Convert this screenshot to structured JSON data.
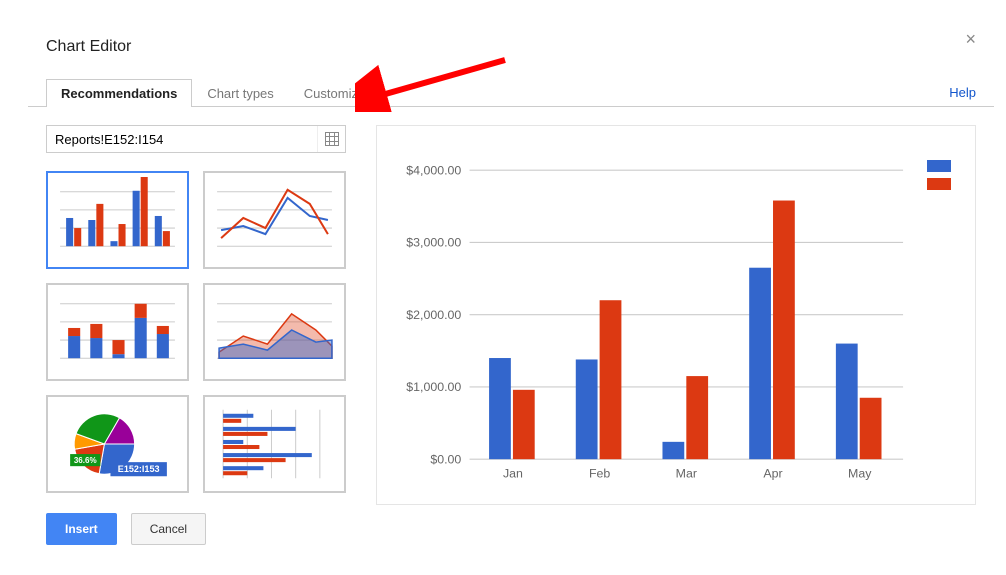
{
  "dialog": {
    "title": "Chart Editor",
    "tabs": [
      "Recommendations",
      "Chart types",
      "Customization"
    ],
    "active_tab_index": 0,
    "help_label": "Help",
    "range_value": "Reports!E152:I154",
    "insert_label": "Insert",
    "cancel_label": "Cancel"
  },
  "colors": {
    "blue": "#3366cc",
    "red": "#dc3912",
    "green": "#109618",
    "purple": "#990099",
    "orange": "#ff9900",
    "grid": "#cccccc",
    "axis_text": "#666666"
  },
  "preview_chart": {
    "type": "bar",
    "categories": [
      "Jan",
      "Feb",
      "Mar",
      "Apr",
      "May"
    ],
    "series": [
      {
        "color": "#3366cc",
        "values": [
          1400,
          1380,
          240,
          2650,
          1600
        ]
      },
      {
        "color": "#dc3912",
        "values": [
          960,
          2200,
          1150,
          3580,
          850
        ]
      }
    ],
    "y_ticks": [
      0,
      1000,
      2000,
      3000,
      4000
    ],
    "y_max": 4000,
    "y_format_prefix": "$",
    "y_format_suffix": ".00",
    "tick_fontsize": 12,
    "bar_group_width": 0.55,
    "grid_color": "#cccccc",
    "axis_text_color": "#666666",
    "legend_swatches": [
      "#3366cc",
      "#dc3912"
    ]
  },
  "thumbnails": [
    {
      "type": "grouped-bar"
    },
    {
      "type": "line"
    },
    {
      "type": "stacked-bar"
    },
    {
      "type": "area"
    },
    {
      "type": "pie",
      "label": "36.6%",
      "tooltip": "E152:I153"
    },
    {
      "type": "hbar"
    }
  ],
  "annotation_arrow_color": "#ff0000"
}
